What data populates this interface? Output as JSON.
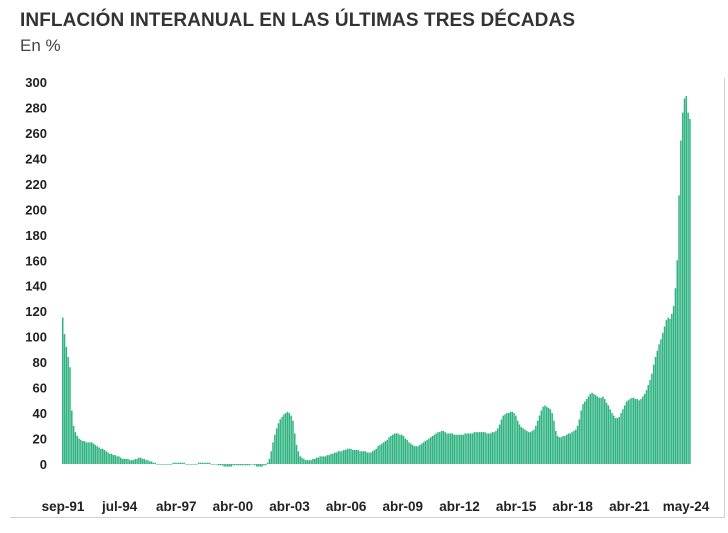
{
  "chart_data": {
    "type": "bar",
    "title": "INFLACIÓN INTERANUAL EN LAS ÚLTIMAS TRES DÉCADAS",
    "subtitle": "En %",
    "xlabel": "",
    "ylabel": "",
    "ylim": [
      0,
      300
    ],
    "yticks": [
      0,
      20,
      40,
      60,
      80,
      100,
      120,
      140,
      160,
      180,
      200,
      220,
      240,
      260,
      280,
      300
    ],
    "xtick_labels": [
      "sep-91",
      "jul-94",
      "abr-97",
      "abr-00",
      "abr-03",
      "abr-06",
      "abr-09",
      "abr-12",
      "abr-15",
      "abr-18",
      "abr-21",
      "may-24"
    ],
    "grid": false,
    "bar_color": "#2fb380",
    "frequency": "monthly",
    "start": "sep-91",
    "end": "may-24",
    "series": [
      {
        "values": [
          115,
          102,
          92,
          84,
          76,
          42,
          30,
          25,
          22,
          20,
          19,
          18,
          18,
          17,
          17,
          17,
          17,
          16,
          15,
          14,
          13,
          12,
          12,
          11,
          10,
          9,
          8,
          8,
          7,
          7,
          6,
          6,
          5,
          4,
          4,
          4,
          4,
          3,
          3,
          3,
          4,
          4,
          5,
          5,
          4,
          4,
          3,
          3,
          2,
          2,
          1,
          1,
          0,
          0,
          0,
          0,
          0,
          0,
          0,
          0,
          0,
          1,
          1,
          1,
          1,
          1,
          1,
          1,
          0,
          0,
          0,
          0,
          0,
          0,
          0,
          1,
          1,
          1,
          1,
          1,
          1,
          1,
          0,
          0,
          0,
          0,
          -1,
          -1,
          -1,
          -2,
          -2,
          -2,
          -2,
          -2,
          -1,
          -1,
          -1,
          -1,
          -1,
          -1,
          -1,
          -1,
          -1,
          -1,
          0,
          0,
          -1,
          -2,
          -2,
          -2,
          -2,
          -1,
          -1,
          1,
          4,
          10,
          17,
          23,
          28,
          32,
          35,
          37,
          39,
          40,
          41,
          40,
          38,
          34,
          24,
          15,
          10,
          6,
          5,
          4,
          3,
          3,
          3,
          3,
          4,
          4,
          5,
          5,
          6,
          6,
          6,
          6,
          7,
          7,
          8,
          8,
          9,
          9,
          10,
          10,
          10,
          11,
          11,
          12,
          12,
          12,
          11,
          11,
          11,
          11,
          10,
          10,
          10,
          10,
          9,
          9,
          9,
          10,
          11,
          12,
          14,
          15,
          16,
          17,
          18,
          19,
          21,
          22,
          23,
          24,
          24,
          24,
          23,
          23,
          22,
          20,
          19,
          17,
          16,
          15,
          14,
          14,
          14,
          15,
          16,
          17,
          18,
          19,
          20,
          21,
          22,
          23,
          24,
          25,
          25,
          26,
          26,
          25,
          24,
          24,
          24,
          24,
          23,
          23,
          23,
          23,
          23,
          23,
          24,
          24,
          24,
          24,
          24,
          25,
          25,
          25,
          25,
          25,
          25,
          25,
          24,
          24,
          24,
          25,
          25,
          26,
          28,
          31,
          35,
          38,
          39,
          40,
          40,
          41,
          41,
          40,
          38,
          34,
          31,
          29,
          28,
          27,
          26,
          25,
          25,
          26,
          27,
          30,
          34,
          38,
          42,
          45,
          46,
          45,
          44,
          43,
          40,
          34,
          26,
          22,
          21,
          21,
          22,
          22,
          23,
          24,
          24,
          25,
          26,
          27,
          30,
          35,
          42,
          47,
          49,
          51,
          53,
          55,
          56,
          55,
          54,
          53,
          52,
          52,
          53,
          51,
          48,
          46,
          43,
          40,
          38,
          36,
          36,
          37,
          40,
          43,
          46,
          49,
          50,
          51,
          52,
          52,
          51,
          51,
          50,
          51,
          53,
          55,
          58,
          62,
          66,
          71,
          78,
          84,
          89,
          94,
          98,
          103,
          108,
          113,
          115,
          114,
          118,
          124,
          138,
          160,
          211,
          254,
          276,
          287,
          289,
          276,
          271
        ]
      }
    ]
  }
}
